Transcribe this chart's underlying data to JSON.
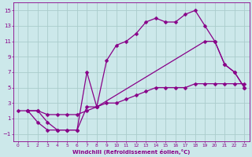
{
  "xlabel": "Windchill (Refroidissement éolien,°C)",
  "bg_color": "#cce8ea",
  "grid_color": "#aacccc",
  "line_color": "#880088",
  "xlim": [
    -0.5,
    23.5
  ],
  "ylim": [
    -2,
    16
  ],
  "xticks": [
    0,
    1,
    2,
    3,
    4,
    5,
    6,
    7,
    8,
    9,
    10,
    11,
    12,
    13,
    14,
    15,
    16,
    17,
    18,
    19,
    20,
    21,
    22,
    23
  ],
  "yticks": [
    -1,
    1,
    3,
    5,
    7,
    9,
    11,
    13,
    15
  ],
  "line1_x": [
    1,
    2,
    3,
    4,
    5,
    6,
    7,
    8,
    9,
    10,
    11,
    12,
    13,
    14,
    15,
    16,
    17,
    18,
    19,
    20,
    21,
    22,
    23
  ],
  "line1_y": [
    2,
    2,
    0.5,
    -0.5,
    -0.5,
    -0.5,
    7.0,
    2.5,
    8.5,
    10.5,
    11,
    12,
    13.5,
    14,
    13.5,
    13.5,
    14.5,
    15,
    13,
    11,
    8,
    7,
    5
  ],
  "line2_x": [
    1,
    2,
    3,
    4,
    5,
    6,
    7,
    8,
    19,
    20,
    21,
    22,
    23
  ],
  "line2_y": [
    2,
    0.5,
    -0.5,
    -0.5,
    -0.5,
    -0.5,
    2.5,
    2.5,
    11,
    11,
    8,
    7,
    5
  ],
  "line3_x": [
    0,
    1,
    2,
    3,
    4,
    5,
    6,
    7,
    8,
    9,
    10,
    11,
    12,
    13,
    14,
    15,
    16,
    17,
    18,
    19,
    20,
    21,
    22,
    23
  ],
  "line3_y": [
    2,
    2,
    2,
    1.5,
    1.5,
    1.5,
    1.5,
    2,
    2.5,
    3,
    3,
    3.5,
    4,
    4.5,
    5,
    5,
    5,
    5,
    5.5,
    5.5,
    5.5,
    5.5,
    5.5,
    5.5
  ],
  "marker": "D",
  "markersize": 2.5,
  "linewidth": 0.9
}
